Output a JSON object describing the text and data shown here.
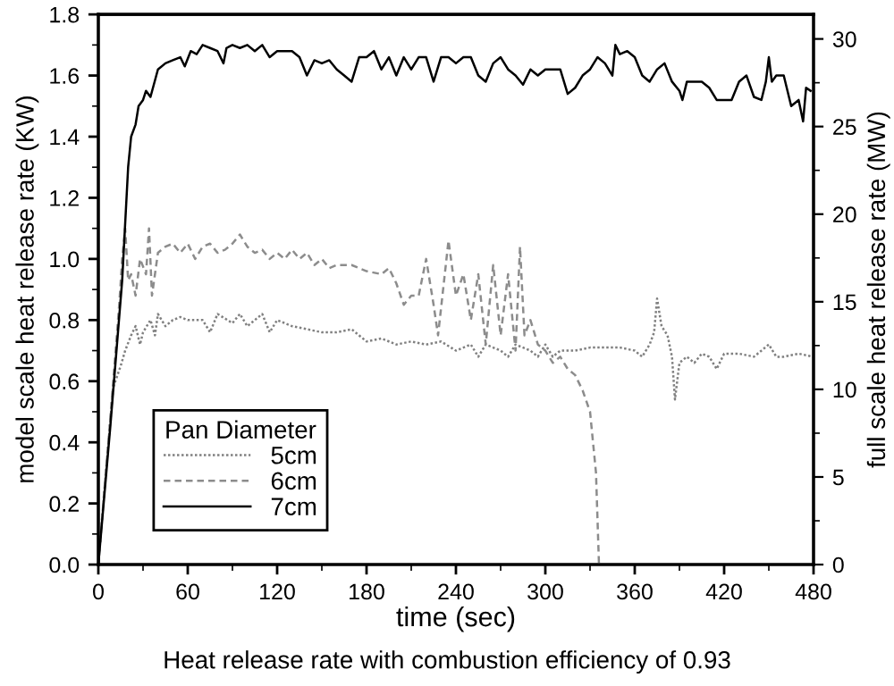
{
  "chart_data": {
    "type": "line",
    "xlabel": "time (sec)",
    "ylabel": "model scale heat release rate (KW)",
    "y2label": "full scale heat release rate (MW)",
    "legend_title": "Pan Diameter",
    "legend": "lower left",
    "grid": false,
    "annotations": [
      "Heat release rate with combustion efficiency of 0.93"
    ],
    "xlim": [
      0,
      480
    ],
    "xticks": [
      0,
      60,
      120,
      180,
      240,
      300,
      360,
      420,
      480
    ],
    "ylim": [
      0,
      1.8
    ],
    "yticks": [
      {
        "value": 0,
        "label": "0.0"
      },
      {
        "value": 0.2,
        "label": "0.2"
      },
      {
        "value": 0.4,
        "label": "0.4"
      },
      {
        "value": 0.6,
        "label": "0.6"
      },
      {
        "value": 0.8,
        "label": "0.8"
      },
      {
        "value": 1.0,
        "label": "1.0"
      },
      {
        "value": 1.2,
        "label": "1.2"
      },
      {
        "value": 1.4,
        "label": "1.4"
      },
      {
        "value": 1.6,
        "label": "1.6"
      },
      {
        "value": 1.8,
        "label": "1.8"
      }
    ],
    "y2lim": [
      0,
      31.4
    ],
    "y2ticks": [
      0,
      5,
      10,
      15,
      20,
      25,
      30
    ],
    "series": [
      {
        "name": "5cm",
        "color": "#808080",
        "line_style": "dotted",
        "x": [
          0,
          5,
          10,
          15,
          18,
          22,
          25,
          28,
          30,
          35,
          38,
          40,
          45,
          50,
          55,
          60,
          70,
          75,
          80,
          90,
          95,
          100,
          110,
          115,
          120,
          130,
          140,
          150,
          160,
          170,
          175,
          180,
          190,
          200,
          210,
          220,
          230,
          240,
          250,
          255,
          260,
          270,
          275,
          280,
          290,
          295,
          300,
          305,
          310,
          320,
          330,
          340,
          350,
          360,
          365,
          370,
          373,
          375,
          378,
          382,
          385,
          387,
          390,
          395,
          400,
          405,
          410,
          415,
          420,
          430,
          440,
          450,
          455,
          460,
          470,
          480
        ],
        "values": [
          0,
          0.3,
          0.58,
          0.65,
          0.7,
          0.75,
          0.78,
          0.72,
          0.76,
          0.8,
          0.75,
          0.82,
          0.78,
          0.8,
          0.81,
          0.8,
          0.8,
          0.76,
          0.82,
          0.79,
          0.82,
          0.78,
          0.82,
          0.76,
          0.8,
          0.78,
          0.77,
          0.76,
          0.76,
          0.77,
          0.75,
          0.73,
          0.74,
          0.72,
          0.73,
          0.72,
          0.73,
          0.7,
          0.72,
          0.68,
          0.72,
          0.7,
          0.68,
          0.72,
          0.7,
          0.68,
          0.72,
          0.68,
          0.7,
          0.7,
          0.71,
          0.71,
          0.71,
          0.7,
          0.68,
          0.72,
          0.76,
          0.87,
          0.78,
          0.75,
          0.68,
          0.54,
          0.66,
          0.68,
          0.66,
          0.69,
          0.68,
          0.64,
          0.69,
          0.69,
          0.68,
          0.72,
          0.68,
          0.68,
          0.69,
          0.68
        ]
      },
      {
        "name": "6cm",
        "color": "#8c8c8c",
        "line_style": "dashed",
        "x": [
          0,
          10,
          14,
          16,
          18,
          20,
          22,
          25,
          28,
          32,
          34,
          36,
          40,
          45,
          50,
          55,
          60,
          65,
          70,
          75,
          80,
          85,
          90,
          95,
          100,
          105,
          110,
          115,
          120,
          125,
          130,
          135,
          140,
          145,
          150,
          155,
          160,
          170,
          180,
          190,
          195,
          200,
          205,
          210,
          215,
          220,
          225,
          228,
          235,
          240,
          245,
          250,
          255,
          260,
          265,
          270,
          275,
          280,
          283,
          286,
          290,
          295,
          300,
          305,
          310,
          315,
          320,
          325,
          330,
          334,
          336
        ],
        "values": [
          0,
          0.6,
          0.85,
          1.0,
          1.1,
          0.93,
          0.95,
          0.88,
          1.0,
          0.95,
          1.1,
          0.88,
          1.02,
          1.04,
          1.05,
          1.02,
          1.05,
          1.0,
          1.04,
          1.05,
          1.02,
          1.03,
          1.05,
          1.08,
          1.04,
          1.02,
          1.03,
          1.0,
          1.02,
          1.0,
          1.03,
          1.0,
          1.02,
          0.98,
          1.0,
          0.97,
          0.98,
          0.98,
          0.96,
          0.95,
          0.97,
          0.92,
          0.85,
          0.88,
          0.88,
          1.0,
          0.85,
          0.75,
          1.06,
          0.88,
          0.95,
          0.8,
          0.95,
          0.72,
          0.98,
          0.75,
          0.95,
          0.7,
          1.04,
          0.75,
          0.8,
          0.72,
          0.7,
          0.66,
          0.68,
          0.64,
          0.62,
          0.57,
          0.5,
          0.3,
          0.0
        ]
      },
      {
        "name": "7cm",
        "color": "#000000",
        "line_style": "solid",
        "x": [
          0,
          8,
          16,
          20,
          22,
          25,
          27,
          30,
          32,
          35,
          40,
          45,
          50,
          55,
          58,
          62,
          66,
          70,
          75,
          80,
          84,
          86,
          90,
          95,
          100,
          105,
          110,
          115,
          120,
          125,
          130,
          135,
          140,
          145,
          150,
          155,
          160,
          165,
          170,
          175,
          180,
          185,
          190,
          195,
          200,
          205,
          210,
          215,
          220,
          225,
          230,
          235,
          240,
          245,
          250,
          255,
          260,
          265,
          270,
          275,
          280,
          285,
          290,
          295,
          300,
          305,
          310,
          315,
          320,
          325,
          330,
          335,
          340,
          345,
          347,
          350,
          355,
          360,
          365,
          370,
          375,
          380,
          385,
          390,
          392,
          395,
          400,
          405,
          410,
          415,
          420,
          425,
          430,
          435,
          440,
          445,
          448,
          450,
          452,
          455,
          460,
          465,
          470,
          473,
          475,
          478
        ],
        "values": [
          0,
          0.45,
          0.93,
          1.3,
          1.4,
          1.44,
          1.5,
          1.52,
          1.55,
          1.53,
          1.62,
          1.64,
          1.65,
          1.66,
          1.63,
          1.68,
          1.67,
          1.7,
          1.69,
          1.68,
          1.64,
          1.69,
          1.7,
          1.69,
          1.7,
          1.68,
          1.7,
          1.66,
          1.68,
          1.68,
          1.68,
          1.66,
          1.6,
          1.65,
          1.64,
          1.65,
          1.62,
          1.6,
          1.58,
          1.66,
          1.66,
          1.68,
          1.62,
          1.66,
          1.6,
          1.66,
          1.62,
          1.66,
          1.66,
          1.58,
          1.66,
          1.66,
          1.64,
          1.66,
          1.66,
          1.6,
          1.58,
          1.64,
          1.66,
          1.62,
          1.6,
          1.57,
          1.62,
          1.6,
          1.62,
          1.62,
          1.62,
          1.54,
          1.56,
          1.6,
          1.62,
          1.66,
          1.64,
          1.6,
          1.7,
          1.67,
          1.68,
          1.66,
          1.6,
          1.58,
          1.62,
          1.64,
          1.58,
          1.55,
          1.52,
          1.58,
          1.58,
          1.58,
          1.56,
          1.52,
          1.52,
          1.52,
          1.58,
          1.6,
          1.53,
          1.52,
          1.58,
          1.66,
          1.58,
          1.6,
          1.6,
          1.5,
          1.52,
          1.45,
          1.56,
          1.55
        ]
      }
    ]
  }
}
